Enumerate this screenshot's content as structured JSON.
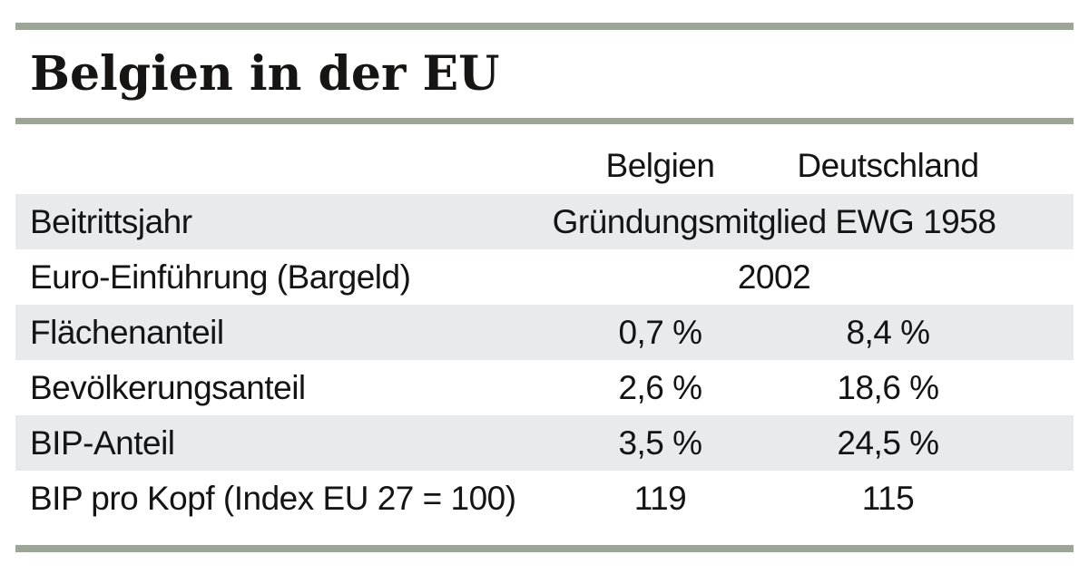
{
  "chart_data": {
    "type": "table",
    "title": "Belgien in der EU",
    "columns": [
      "",
      "Belgien",
      "Deutschland"
    ],
    "rows": [
      {
        "label": "Beitrittsjahr",
        "value": "Gründungsmitglied EWG 1958",
        "span": true
      },
      {
        "label": "Euro-Einführung (Bargeld)",
        "value": "2002",
        "span": true
      },
      {
        "label": "Flächenanteil",
        "belgien": "0,7 %",
        "deutschland": "8,4 %"
      },
      {
        "label": "Bevölkerungsanteil",
        "belgien": "2,6 %",
        "deutschland": "18,6 %"
      },
      {
        "label": "BIP-Anteil",
        "belgien": "3,5 %",
        "deutschland": "24,5 %"
      },
      {
        "label": "BIP pro Kopf (Index EU 27 = 100)",
        "belgien": "119",
        "deutschland": "115"
      }
    ],
    "layout": {
      "legend": "none",
      "grid": "off",
      "row_striping": "alternating starting with first data row shaded"
    }
  },
  "colors": {
    "accent_bar": "#9da696",
    "row_shade": "#e8eaeb",
    "text": "#141414"
  }
}
